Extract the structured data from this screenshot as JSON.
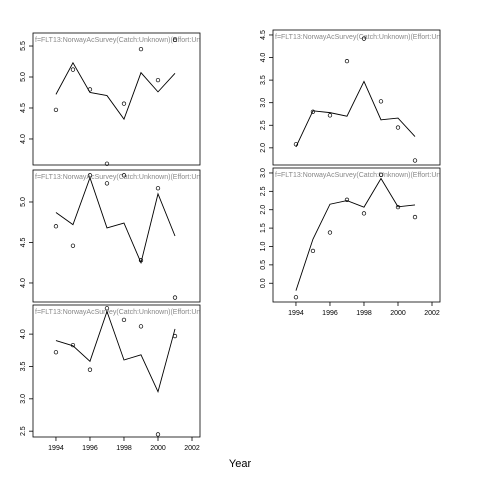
{
  "chart_data": [
    {
      "type": "line",
      "title": "f=FLT13:NorwayAcSurvey(Catch:Unknown)(Effort:Un",
      "x": [
        1994,
        1995,
        1996,
        1997,
        1998,
        1999,
        2000,
        2001
      ],
      "xlim": [
        1992.65,
        2002.47
      ],
      "ylim": [
        3.58,
        5.71
      ],
      "yticks": [
        {
          "value": 4,
          "label": "4.0"
        },
        4.5,
        {
          "value": 5,
          "label": "5.0"
        },
        5.5
      ],
      "series": [
        {
          "marker": "circle",
          "color": "#000000",
          "values": [
            4.47,
            5.12,
            4.8,
            3.6,
            4.57,
            5.45,
            4.95,
            5.6
          ]
        },
        {
          "marker": "none",
          "color": "#000000",
          "values": [
            4.72,
            5.23,
            4.75,
            4.7,
            4.32,
            5.07,
            4.76,
            5.06
          ]
        }
      ]
    },
    {
      "type": "line",
      "title": "f=FLT13:NorwayAcSurvey(Catch:Unknown)(Effort:Un",
      "x": [
        1994,
        1995,
        1996,
        1997,
        1998,
        1999,
        2000,
        2001
      ],
      "xlim": [
        1992.65,
        2002.47
      ],
      "ylim": [
        3.765,
        5.395
      ],
      "yticks": [
        {
          "value": 4,
          "label": "4.0"
        },
        4.5,
        {
          "value": 5,
          "label": "5.0"
        }
      ],
      "series": [
        {
          "marker": "circle",
          "color": "#000000",
          "values": [
            4.7,
            4.46,
            5.33,
            5.23,
            5.33,
            4.28,
            5.17,
            3.82
          ]
        },
        {
          "marker": "none",
          "color": "#000000",
          "values": [
            4.87,
            4.72,
            5.3,
            4.68,
            4.74,
            4.25,
            5.1,
            4.58
          ]
        }
      ]
    },
    {
      "type": "line",
      "title": "f=FLT13:NorwayAcSurvey(Catch:Unknown)(Effort:Un",
      "x": [
        1994,
        1995,
        1996,
        1997,
        1998,
        1999,
        2000,
        2001
      ],
      "xlim": [
        1992.65,
        2002.47
      ],
      "xticks": [
        1994,
        1996,
        1998,
        2000,
        2002
      ],
      "ylim": [
        2.41,
        4.45
      ],
      "yticks": [
        2.5,
        {
          "value": 3,
          "label": "3.0"
        },
        3.5,
        {
          "value": 4,
          "label": "4.0"
        }
      ],
      "series": [
        {
          "marker": "circle",
          "color": "#000000",
          "values": [
            3.72,
            3.83,
            3.45,
            4.4,
            4.22,
            4.12,
            2.45,
            3.97
          ]
        },
        {
          "marker": "none",
          "color": "#000000",
          "values": [
            3.9,
            3.82,
            3.58,
            4.35,
            3.6,
            3.68,
            3.11,
            4.08
          ]
        }
      ]
    },
    {
      "type": "line",
      "title": "f=FLT13:NorwayAcSurvey(Catch:Unknown)(Effort:Un",
      "x": [
        1994,
        1995,
        1996,
        1997,
        1998,
        1999,
        2000,
        2001
      ],
      "xlim": [
        1992.65,
        2002.47
      ],
      "ylim": [
        1.62,
        4.61
      ],
      "yticks": [
        {
          "value": 2,
          "label": "2.0"
        },
        2.5,
        {
          "value": 3,
          "label": "3.0"
        },
        3.5,
        {
          "value": 4,
          "label": "4.0"
        },
        4.5
      ],
      "series": [
        {
          "marker": "circle",
          "color": "#000000",
          "values": [
            2.08,
            2.8,
            2.72,
            3.92,
            4.42,
            3.03,
            2.45,
            1.72
          ]
        },
        {
          "marker": "none",
          "color": "#000000",
          "values": [
            2.02,
            2.82,
            2.78,
            2.7,
            3.47,
            2.62,
            2.66,
            2.25
          ]
        }
      ]
    },
    {
      "type": "line",
      "title": "f=FLT13:NorwayAcSurvey(Catch:Unknown)(Effort:Un",
      "x": [
        1994,
        1995,
        1996,
        1997,
        1998,
        1999,
        2000,
        2001
      ],
      "xlim": [
        1992.65,
        2002.47
      ],
      "xticks": [
        1994,
        1996,
        1998,
        2000,
        2002
      ],
      "ylim": [
        -0.51,
        3.135
      ],
      "yticks": [
        {
          "value": 0,
          "label": "0.0"
        },
        0.5,
        {
          "value": 1,
          "label": "1.0"
        },
        1.5,
        {
          "value": 2,
          "label": "2.0"
        },
        2.5,
        {
          "value": 3,
          "label": "3.0"
        }
      ],
      "series": [
        {
          "marker": "circle",
          "color": "#000000",
          "values": [
            -0.38,
            0.88,
            1.38,
            2.27,
            1.9,
            2.95,
            2.07,
            1.8
          ]
        },
        {
          "marker": "none",
          "color": "#000000",
          "values": [
            -0.2,
            1.2,
            2.15,
            2.25,
            2.07,
            2.85,
            2.08,
            2.13
          ]
        }
      ]
    }
  ],
  "xlabel": "Year"
}
